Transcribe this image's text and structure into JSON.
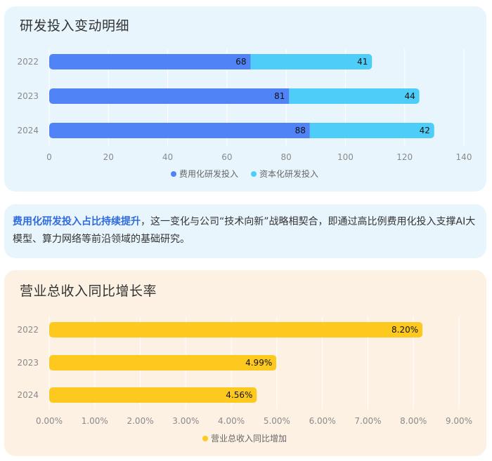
{
  "chart_data": [
    {
      "type": "bar",
      "orientation": "horizontal",
      "stacked": true,
      "title": "研发投入变动明细",
      "categories": [
        "2022",
        "2023",
        "2024"
      ],
      "series": [
        {
          "name": "费用化研发投入",
          "values": [
            68,
            81,
            88
          ],
          "labels": [
            "68",
            "81",
            "88"
          ],
          "color": "#5083f5"
        },
        {
          "name": "资本化研发投入",
          "values": [
            41,
            44,
            42
          ],
          "labels": [
            "41",
            "44",
            "42"
          ],
          "color": "#4ecdf8"
        }
      ],
      "xlim": [
        0,
        140
      ],
      "xticks": [
        "0",
        "20",
        "40",
        "60",
        "80",
        "100",
        "120",
        "140"
      ],
      "grid": true,
      "legend": "bottom-center"
    },
    {
      "type": "bar",
      "orientation": "horizontal",
      "title": "营业总收入同比增长率",
      "categories": [
        "2022",
        "2023",
        "2024"
      ],
      "series": [
        {
          "name": "营业总收入同比增加",
          "values": [
            8.2,
            4.99,
            4.56
          ],
          "labels": [
            "8.20%",
            "4.99%",
            "4.56%"
          ],
          "color": "#fec91f"
        }
      ],
      "xlim": [
        0,
        9
      ],
      "xticks": [
        "0.00%",
        "1.00%",
        "2.00%",
        "3.00%",
        "4.00%",
        "5.00%",
        "6.00%",
        "7.00%",
        "8.00%",
        "9.00%"
      ],
      "grid": true,
      "legend": "bottom-center"
    }
  ],
  "text_block": {
    "highlight": "费用化研发投入占比持续提升",
    "body": "，这一变化与公司“技术向新”战略相契合，即通过高比例费用化投入支撑AI大模型、算力网络等前沿领域的基础研究。"
  }
}
